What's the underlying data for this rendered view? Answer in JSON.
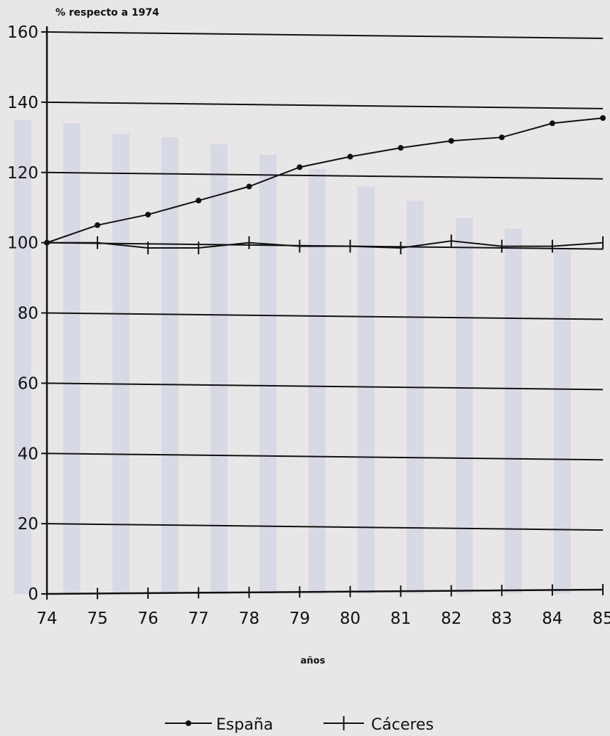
{
  "chart_data": {
    "type": "line",
    "ylabel": "% respecto a 1974",
    "xlabel": "años",
    "x": [
      "74",
      "75",
      "76",
      "77",
      "78",
      "79",
      "80",
      "81",
      "82",
      "83",
      "84",
      "85"
    ],
    "ylim": [
      0,
      160
    ],
    "yticks": [
      0,
      20,
      40,
      60,
      80,
      100,
      120,
      140,
      160
    ],
    "grid": "horizontal",
    "legend_position": "bottom",
    "series": [
      {
        "name": "España",
        "marker": "dot",
        "values": [
          100,
          105,
          108,
          112,
          116,
          121.5,
          124.5,
          127,
          129,
          130,
          134,
          135.5
        ]
      },
      {
        "name": "Cáceres",
        "marker": "tick",
        "values": [
          100,
          100,
          98.5,
          98.5,
          100,
          99,
          99,
          98.5,
          100.5,
          99,
          99,
          100
        ]
      }
    ],
    "colors": {
      "line": "#111111",
      "background": "#e9e6e8",
      "bleed_through": "#c9cfe0"
    }
  }
}
